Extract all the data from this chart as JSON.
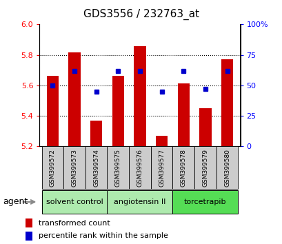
{
  "title": "GDS3556 / 232763_at",
  "samples": [
    "GSM399572",
    "GSM399573",
    "GSM399574",
    "GSM399575",
    "GSM399576",
    "GSM399577",
    "GSM399578",
    "GSM399579",
    "GSM399580"
  ],
  "red_values": [
    5.665,
    5.815,
    5.37,
    5.665,
    5.855,
    5.27,
    5.615,
    5.45,
    5.77
  ],
  "blue_percentiles": [
    50,
    62,
    45,
    62,
    62,
    45,
    62,
    47,
    62
  ],
  "ylim_left": [
    5.2,
    6.0
  ],
  "ylim_right": [
    0,
    100
  ],
  "yticks_left": [
    5.2,
    5.4,
    5.6,
    5.8,
    6.0
  ],
  "yticks_right": [
    0,
    25,
    50,
    75,
    100
  ],
  "ytick_labels_right": [
    "0",
    "25",
    "50",
    "75",
    "100%"
  ],
  "grid_lines": [
    5.4,
    5.6,
    5.8
  ],
  "groups": [
    {
      "label": "solvent control",
      "indices": [
        0,
        1,
        2
      ],
      "color": "#aeeaae"
    },
    {
      "label": "angiotensin II",
      "indices": [
        3,
        4,
        5
      ],
      "color": "#aeeaae"
    },
    {
      "label": "torcetrapib",
      "indices": [
        6,
        7,
        8
      ],
      "color": "#55dd55"
    }
  ],
  "bar_color": "#cc0000",
  "dot_color": "#0000cc",
  "bar_bottom": 5.2,
  "bar_width": 0.55,
  "agent_label": "agent",
  "legend_red": "transformed count",
  "legend_blue": "percentile rank within the sample",
  "sample_box_color": "#cccccc",
  "dot_size": 5
}
